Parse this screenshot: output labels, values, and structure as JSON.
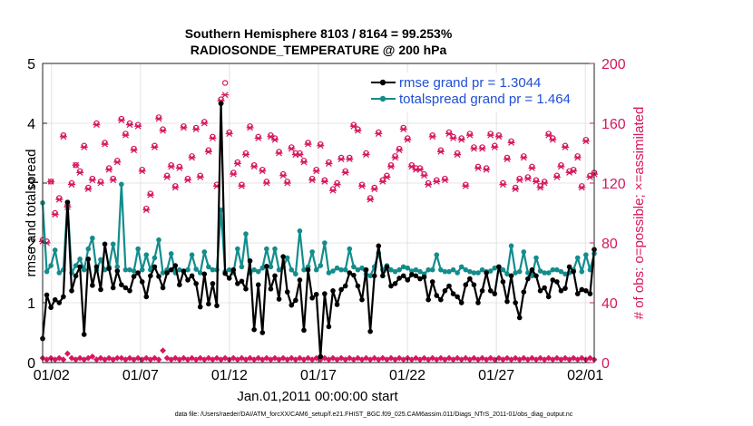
{
  "chart_data": {
    "type": "line",
    "title_line1": "Southern Hemisphere 8103 / 8164 = 99.253%",
    "title_line2": "RADIOSONDE_TEMPERATURE @ 200 hPa",
    "ylabel_left": "rmse and totalspread",
    "ylabel_right": "# of obs: o=possible; ×=assimilated",
    "xlabel": "Jan.01,2011 00:00:00 start",
    "footer": "data file: /Users/raeder/DAI/ATM_forcXX/CAM6_setup/f.e21.FHIST_BGC.f09_025.CAM6assim.011/Diags_NTrS_2011-01/obs_diag_output.nc",
    "x_ticks": [
      "01/02",
      "01/07",
      "01/12",
      "01/17",
      "01/22",
      "01/27",
      "02/01"
    ],
    "x_tick_days": [
      1,
      6,
      11,
      16,
      21,
      26,
      31
    ],
    "x_range": [
      0.5,
      31.5
    ],
    "y_left_range": [
      0,
      5
    ],
    "y_left_ticks": [
      "0",
      "1",
      "2",
      "3",
      "4",
      "5"
    ],
    "y_right_range": [
      0,
      200
    ],
    "y_right_ticks": [
      "0",
      "40",
      "80",
      "120",
      "160",
      "200"
    ],
    "colors": {
      "rmse": "#000000",
      "spread": "#138c8c",
      "obs": "#d6175f",
      "legend_text": "#1f4fd6",
      "right_axis": "#d6175f",
      "axis": "#222222",
      "grid": "#dcdcdc"
    },
    "series": [
      {
        "name": "rmse grand pr = 1.3044",
        "key": "rmse",
        "values": [
          0.4,
          1.13,
          0.92,
          1.05,
          1.0,
          1.1,
          2.68,
          1.2,
          1.45,
          1.6,
          0.47,
          1.73,
          1.29,
          1.6,
          1.22,
          1.98,
          1.57,
          1.25,
          1.53,
          1.3,
          1.25,
          1.2,
          1.44,
          1.5,
          1.35,
          1.1,
          1.45,
          1.6,
          1.44,
          1.25,
          1.5,
          1.55,
          1.62,
          1.3,
          1.53,
          1.38,
          1.45,
          1.32,
          0.93,
          1.48,
          0.98,
          1.32,
          0.95,
          4.33,
          1.49,
          1.41,
          1.55,
          1.32,
          1.36,
          1.23,
          1.7,
          0.55,
          1.3,
          0.5,
          1.61,
          1.23,
          1.45,
          1.06,
          1.77,
          1.18,
          0.96,
          1.04,
          1.38,
          0.54,
          1.55,
          1.08,
          1.14,
          0.1,
          1.15,
          0.6,
          1.2,
          0.97,
          1.22,
          1.28,
          1.5,
          1.46,
          1.28,
          1.05,
          1.55,
          0.52,
          1.45,
          1.95,
          1.45,
          1.6,
          1.28,
          1.32,
          1.41,
          1.45,
          1.38,
          1.47,
          1.45,
          1.4,
          1.43,
          1.05,
          1.35,
          1.12,
          1.05,
          1.2,
          1.28,
          1.15,
          1.1,
          1.0,
          1.3,
          1.4,
          1.3,
          1.0,
          1.2,
          1.5,
          1.2,
          1.15,
          1.6,
          1.35,
          1.02,
          1.45,
          1.0,
          0.75,
          1.18,
          1.4,
          1.55,
          1.45,
          1.2,
          1.25,
          1.1,
          1.38,
          1.35,
          1.2,
          1.24,
          1.6,
          1.52,
          1.15,
          1.22,
          1.2,
          1.15,
          1.89
        ]
      },
      {
        "name": "totalspread grand pr = 1.464",
        "key": "spread",
        "values": [
          2.67,
          1.52,
          1.62,
          1.88,
          1.5,
          1.55,
          2.68,
          1.5,
          1.62,
          1.73,
          1.55,
          1.9,
          2.08,
          1.55,
          1.72,
          1.55,
          1.6,
          1.98,
          1.6,
          2.98,
          1.55,
          1.55,
          1.53,
          1.9,
          1.55,
          1.8,
          1.55,
          1.75,
          2.05,
          1.5,
          1.55,
          1.82,
          1.5,
          1.55,
          1.52,
          1.55,
          1.8,
          1.56,
          1.5,
          1.85,
          1.6,
          1.55,
          1.55,
          2.55,
          1.52,
          1.55,
          1.5,
          1.9,
          1.6,
          2.15,
          1.5,
          1.55,
          1.52,
          1.58,
          1.9,
          1.6,
          1.9,
          1.55,
          1.6,
          1.75,
          1.55,
          1.48,
          2.2,
          1.55,
          1.6,
          1.85,
          1.55,
          1.62,
          2.0,
          1.5,
          1.53,
          1.58,
          1.55,
          1.55,
          1.9,
          1.6,
          1.55,
          1.58,
          1.48,
          1.45,
          1.6,
          1.83,
          1.55,
          1.62,
          1.55,
          1.52,
          1.55,
          1.6,
          1.58,
          1.53,
          1.55,
          1.52,
          1.48,
          1.55,
          1.55,
          1.8,
          1.55,
          1.52,
          1.52,
          1.55,
          1.5,
          1.6,
          1.55,
          1.52,
          1.5,
          1.5,
          1.55,
          1.52,
          1.53,
          1.58,
          1.6,
          1.55,
          1.48,
          1.95,
          1.5,
          1.52,
          1.85,
          1.5,
          1.45,
          1.75,
          1.53,
          1.5,
          1.5,
          1.55,
          1.55,
          1.52,
          1.48,
          1.5,
          1.55,
          1.75,
          1.52,
          1.8,
          1.55,
          1.82
        ]
      }
    ],
    "obs_possible": [
      82,
      81,
      121,
      100,
      110,
      152,
      105,
      120,
      132,
      128,
      145,
      117,
      123,
      160,
      121,
      147,
      130,
      123,
      135,
      163,
      153,
      160,
      143,
      159,
      129,
      103,
      113,
      145,
      164,
      156,
      125,
      132,
      118,
      131,
      158,
      123,
      138,
      157,
      125,
      161,
      142,
      151,
      119,
      176,
      187,
      154,
      127,
      134,
      119,
      140,
      158,
      132,
      151,
      129,
      121,
      152,
      150,
      141,
      126,
      121,
      144,
      140,
      140,
      135,
      147,
      123,
      129,
      146,
      122,
      134,
      116,
      120,
      137,
      128,
      137,
      159,
      156,
      119,
      140,
      110,
      117,
      154,
      122,
      125,
      132,
      138,
      143,
      157,
      150,
      132,
      130,
      130,
      126,
      120,
      152,
      122,
      142,
      123,
      154,
      151,
      140,
      150,
      119,
      153,
      144,
      131,
      144,
      130,
      153,
      145,
      152,
      120,
      137,
      148,
      117,
      123,
      138,
      124,
      131,
      122,
      118,
      121,
      153,
      150,
      125,
      132,
      145,
      128,
      129,
      138,
      118,
      149,
      125,
      127
    ],
    "obs_assimilated": [
      81,
      80,
      121,
      99,
      109,
      151,
      104,
      119,
      132,
      127,
      144,
      116,
      122,
      159,
      120,
      146,
      129,
      122,
      134,
      162,
      152,
      159,
      142,
      158,
      128,
      102,
      112,
      144,
      163,
      155,
      124,
      131,
      117,
      130,
      157,
      122,
      137,
      156,
      124,
      160,
      141,
      150,
      118,
      175,
      179,
      153,
      126,
      133,
      118,
      139,
      157,
      131,
      150,
      128,
      120,
      151,
      149,
      140,
      125,
      120,
      143,
      139,
      139,
      134,
      146,
      122,
      128,
      145,
      121,
      133,
      115,
      119,
      136,
      127,
      136,
      158,
      155,
      118,
      139,
      109,
      116,
      153,
      121,
      124,
      131,
      137,
      142,
      156,
      149,
      131,
      129,
      129,
      125,
      119,
      151,
      121,
      141,
      122,
      153,
      150,
      139,
      149,
      118,
      152,
      143,
      130,
      143,
      129,
      152,
      144,
      151,
      119,
      136,
      147,
      116,
      122,
      137,
      123,
      130,
      121,
      117,
      120,
      152,
      149,
      124,
      131,
      144,
      127,
      128,
      137,
      117,
      148,
      124,
      126
    ],
    "obs_low_possible": [
      3,
      2,
      3,
      2,
      3,
      2,
      6,
      3,
      2,
      3,
      2,
      3,
      4,
      2,
      3,
      2,
      3,
      2,
      3,
      3,
      2,
      3,
      2,
      3,
      2,
      3,
      2,
      3,
      2,
      8,
      3,
      2,
      3,
      2,
      3,
      2,
      3,
      2,
      3,
      2,
      3,
      2,
      3,
      2,
      3,
      2,
      3,
      2,
      3,
      2,
      3,
      2,
      3,
      2,
      3,
      2,
      3,
      2,
      3,
      2,
      3,
      2,
      3,
      2,
      3,
      2,
      3,
      2,
      3,
      2,
      3,
      2,
      3,
      2,
      3,
      2,
      3,
      2,
      3,
      2,
      3,
      2,
      3,
      2,
      3,
      2,
      3,
      2,
      3,
      2,
      3,
      2,
      3,
      2,
      3,
      2,
      3,
      2,
      3,
      2,
      3,
      2,
      3,
      2,
      3,
      2,
      3,
      2,
      3,
      2,
      3,
      2,
      3,
      2,
      3,
      2,
      3,
      2,
      3,
      2,
      3,
      2,
      3,
      2,
      3,
      2,
      3,
      2,
      3,
      2,
      3,
      2,
      3,
      2
    ]
  }
}
